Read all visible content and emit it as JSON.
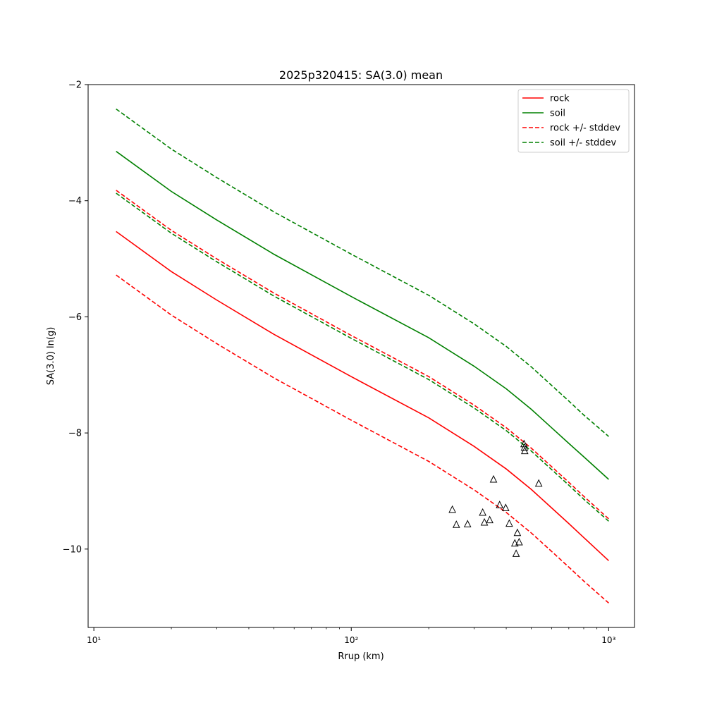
{
  "chart_data": {
    "type": "line",
    "title": "2025p320415: SA(3.0) mean",
    "xlabel": "Rrup (km)",
    "ylabel": "SA(3.0) ln(g)",
    "xscale": "log",
    "xlim": [
      9.5,
      1260
    ],
    "ylim": [
      -11.35,
      -2.0
    ],
    "x_ticks": [
      10,
      100,
      1000
    ],
    "x_tick_labels": [
      "10¹",
      "10²",
      "10³"
    ],
    "y_ticks": [
      -10,
      -8,
      -6,
      -4,
      -2
    ],
    "y_tick_labels": [
      "−10",
      "−8",
      "−6",
      "−4",
      "−2"
    ],
    "grid": false,
    "legend_position": "top-right",
    "x": [
      12.2,
      20,
      30,
      50,
      100,
      200,
      300,
      400,
      500,
      600,
      700,
      800,
      1000
    ],
    "series": [
      {
        "name": "rock",
        "color": "#ff0000",
        "style": "solid",
        "values": [
          -4.53,
          -5.22,
          -5.71,
          -6.3,
          -7.03,
          -7.74,
          -8.23,
          -8.62,
          -8.97,
          -9.29,
          -9.56,
          -9.8,
          -10.2
        ]
      },
      {
        "name": "soil",
        "color": "#008000",
        "style": "solid",
        "values": [
          -3.15,
          -3.84,
          -4.33,
          -4.92,
          -5.65,
          -6.36,
          -6.85,
          -7.24,
          -7.59,
          -7.91,
          -8.18,
          -8.41,
          -8.8
        ]
      },
      {
        "name": "rock +/- stddev",
        "color": "#ff0000",
        "style": "dashed",
        "group": "rock-stddev",
        "values": [
          -3.82,
          -4.51,
          -5.0,
          -5.59,
          -6.32,
          -7.03,
          -7.52,
          -7.91,
          -8.26,
          -8.58,
          -8.85,
          -9.09,
          -9.48
        ]
      },
      {
        "name": "rock +/- stddev",
        "color": "#ff0000",
        "style": "dashed",
        "group": "rock-stddev",
        "values": [
          -5.28,
          -5.97,
          -6.46,
          -7.05,
          -7.78,
          -8.49,
          -8.98,
          -9.37,
          -9.72,
          -10.04,
          -10.31,
          -10.55,
          -10.93
        ]
      },
      {
        "name": "soil +/- stddev",
        "color": "#008000",
        "style": "dashed",
        "group": "soil-stddev",
        "values": [
          -2.42,
          -3.11,
          -3.6,
          -4.19,
          -4.92,
          -5.63,
          -6.12,
          -6.51,
          -6.86,
          -7.18,
          -7.45,
          -7.69,
          -8.06
        ]
      },
      {
        "name": "soil +/- stddev",
        "color": "#008000",
        "style": "dashed",
        "group": "soil-stddev",
        "values": [
          -3.87,
          -4.56,
          -5.05,
          -5.64,
          -6.37,
          -7.08,
          -7.57,
          -7.96,
          -8.31,
          -8.63,
          -8.9,
          -9.14,
          -9.52
        ]
      }
    ],
    "observations": {
      "marker": "triangle",
      "points": [
        [
          247,
          -9.32
        ],
        [
          256,
          -9.58
        ],
        [
          283,
          -9.57
        ],
        [
          324,
          -9.37
        ],
        [
          329,
          -9.54
        ],
        [
          345,
          -9.5
        ],
        [
          357,
          -8.8
        ],
        [
          377,
          -9.24
        ],
        [
          398,
          -9.29
        ],
        [
          411,
          -9.56
        ],
        [
          432,
          -9.9
        ],
        [
          437,
          -10.08
        ],
        [
          442,
          -9.72
        ],
        [
          449,
          -9.88
        ],
        [
          469,
          -8.19
        ],
        [
          471,
          -8.25
        ],
        [
          472,
          -8.31
        ],
        [
          535,
          -8.87
        ]
      ]
    },
    "legend": [
      {
        "label": "rock",
        "color": "#ff0000",
        "style": "solid"
      },
      {
        "label": "soil",
        "color": "#008000",
        "style": "solid"
      },
      {
        "label": "rock +/- stddev",
        "color": "#ff0000",
        "style": "dashed"
      },
      {
        "label": "soil +/- stddev",
        "color": "#008000",
        "style": "dashed"
      }
    ]
  }
}
